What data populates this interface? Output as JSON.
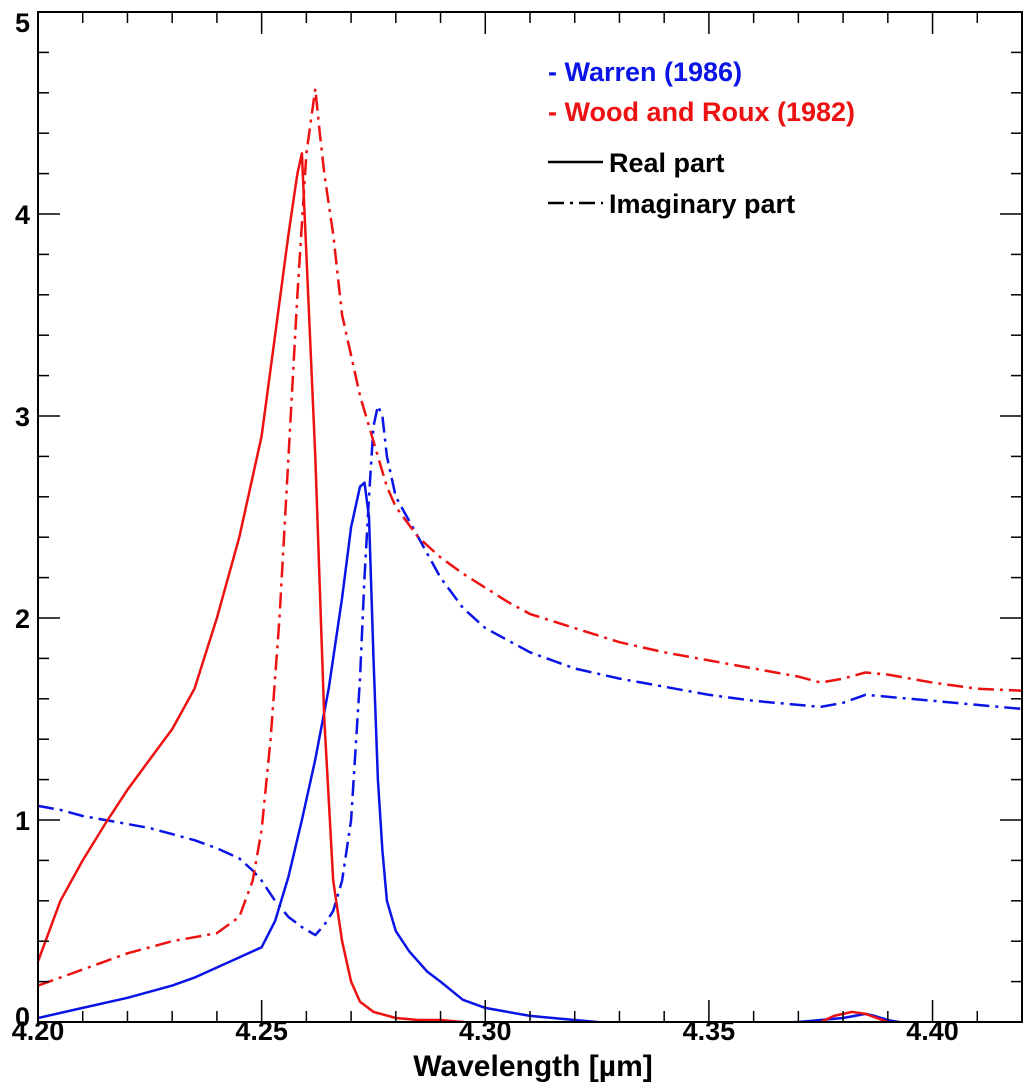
{
  "chart_data": {
    "type": "line",
    "title": "",
    "xlabel": "Wavelength [µm]",
    "ylabel": "",
    "xlim": [
      4.2,
      4.42
    ],
    "ylim": [
      0,
      5
    ],
    "x_ticks": [
      4.2,
      4.25,
      4.3,
      4.35,
      4.4
    ],
    "x_tick_labels": [
      "4.20",
      "4.25",
      "4.30",
      "4.35",
      "4.40"
    ],
    "y_ticks": [
      0,
      1,
      2,
      3,
      4,
      5
    ],
    "y_tick_labels": [
      "0",
      "1",
      "2",
      "3",
      "4",
      "5"
    ],
    "grid": false,
    "legend_position": "top-right",
    "legend": {
      "sources": [
        {
          "label": "- Warren (1986)",
          "color": "#0a14e6"
        },
        {
          "label": "- Wood and Roux (1982)",
          "color": "#ee1111"
        }
      ],
      "styles": [
        {
          "label": "Real part",
          "dash": "solid"
        },
        {
          "label": "Imaginary part",
          "dash": "dashdot"
        }
      ]
    },
    "series": [
      {
        "source": "Warren (1986)",
        "part": "Real part",
        "color": "#0a14e6",
        "dash": "solid",
        "x": [
          4.2,
          4.21,
          4.22,
          4.23,
          4.235,
          4.24,
          4.245,
          4.25,
          4.253,
          4.256,
          4.259,
          4.262,
          4.265,
          4.268,
          4.27,
          4.272,
          4.273,
          4.274,
          4.275,
          4.276,
          4.277,
          4.278,
          4.28,
          4.283,
          4.287,
          4.29,
          4.295,
          4.3,
          4.305,
          4.31,
          4.32,
          4.33,
          4.34,
          4.35,
          4.36,
          4.37,
          4.375,
          4.38,
          4.385,
          4.387,
          4.39,
          4.395,
          4.4,
          4.41,
          4.42
        ],
        "y": [
          0.02,
          0.07,
          0.12,
          0.18,
          0.22,
          0.27,
          0.32,
          0.37,
          0.5,
          0.72,
          1.0,
          1.3,
          1.65,
          2.1,
          2.45,
          2.65,
          2.67,
          2.5,
          1.8,
          1.2,
          0.85,
          0.6,
          0.45,
          0.35,
          0.25,
          0.2,
          0.11,
          0.07,
          0.05,
          0.03,
          0.01,
          -0.01,
          -0.01,
          -0.01,
          -0.01,
          0.0,
          0.01,
          0.02,
          0.04,
          0.03,
          0.01,
          -0.01,
          -0.02,
          -0.02,
          -0.02
        ]
      },
      {
        "source": "Warren (1986)",
        "part": "Imaginary part",
        "color": "#0a14e6",
        "dash": "dashdot",
        "x": [
          4.2,
          4.205,
          4.21,
          4.215,
          4.22,
          4.225,
          4.23,
          4.235,
          4.24,
          4.245,
          4.248,
          4.25,
          4.253,
          4.256,
          4.259,
          4.262,
          4.264,
          4.266,
          4.268,
          4.27,
          4.272,
          4.273,
          4.274,
          4.275,
          4.276,
          4.277,
          4.278,
          4.28,
          4.285,
          4.29,
          4.295,
          4.3,
          4.31,
          4.32,
          4.33,
          4.34,
          4.35,
          4.36,
          4.37,
          4.375,
          4.38,
          4.385,
          4.39,
          4.4,
          4.41,
          4.42
        ],
        "y": [
          1.07,
          1.05,
          1.02,
          1.0,
          0.98,
          0.96,
          0.93,
          0.9,
          0.86,
          0.81,
          0.75,
          0.7,
          0.6,
          0.52,
          0.47,
          0.43,
          0.48,
          0.55,
          0.7,
          1.0,
          1.7,
          2.2,
          2.6,
          2.95,
          3.05,
          3.0,
          2.8,
          2.6,
          2.4,
          2.2,
          2.05,
          1.95,
          1.83,
          1.75,
          1.7,
          1.66,
          1.62,
          1.59,
          1.57,
          1.56,
          1.58,
          1.62,
          1.61,
          1.59,
          1.57,
          1.55
        ]
      },
      {
        "source": "Wood and Roux (1982)",
        "part": "Real part",
        "color": "#ee1111",
        "dash": "solid",
        "x": [
          4.2,
          4.205,
          4.21,
          4.215,
          4.22,
          4.225,
          4.23,
          4.235,
          4.24,
          4.245,
          4.25,
          4.253,
          4.256,
          4.258,
          4.259,
          4.26,
          4.262,
          4.264,
          4.266,
          4.268,
          4.27,
          4.272,
          4.275,
          4.28,
          4.285,
          4.29,
          4.295,
          4.3,
          4.31,
          4.32,
          4.33,
          4.34,
          4.35,
          4.36,
          4.37,
          4.375,
          4.378,
          4.382,
          4.385,
          4.39,
          4.4,
          4.41,
          4.42
        ],
        "y": [
          0.3,
          0.6,
          0.8,
          0.98,
          1.15,
          1.3,
          1.45,
          1.65,
          2.0,
          2.4,
          2.9,
          3.4,
          3.9,
          4.2,
          4.3,
          3.8,
          2.8,
          1.5,
          0.7,
          0.4,
          0.2,
          0.1,
          0.05,
          0.02,
          0.01,
          0.01,
          0.0,
          -0.02,
          -0.02,
          -0.02,
          -0.02,
          -0.02,
          -0.02,
          -0.02,
          -0.01,
          0.0,
          0.03,
          0.05,
          0.04,
          0.0,
          -0.02,
          -0.02,
          -0.02
        ]
      },
      {
        "source": "Wood and Roux (1982)",
        "part": "Imaginary part",
        "color": "#ee1111",
        "dash": "dashdot",
        "x": [
          4.2,
          4.205,
          4.21,
          4.215,
          4.22,
          4.225,
          4.23,
          4.235,
          4.24,
          4.245,
          4.248,
          4.25,
          4.252,
          4.254,
          4.256,
          4.258,
          4.26,
          4.262,
          4.263,
          4.264,
          4.266,
          4.268,
          4.27,
          4.272,
          4.274,
          4.276,
          4.278,
          4.28,
          4.285,
          4.29,
          4.295,
          4.3,
          4.305,
          4.31,
          4.32,
          4.33,
          4.34,
          4.35,
          4.36,
          4.37,
          4.375,
          4.38,
          4.385,
          4.39,
          4.4,
          4.41,
          4.42
        ],
        "y": [
          0.18,
          0.22,
          0.26,
          0.3,
          0.34,
          0.37,
          0.4,
          0.42,
          0.44,
          0.52,
          0.7,
          0.95,
          1.4,
          2.0,
          2.8,
          3.6,
          4.3,
          4.62,
          4.4,
          4.2,
          3.9,
          3.5,
          3.3,
          3.1,
          2.95,
          2.8,
          2.65,
          2.55,
          2.4,
          2.3,
          2.22,
          2.15,
          2.08,
          2.02,
          1.95,
          1.88,
          1.83,
          1.79,
          1.75,
          1.71,
          1.68,
          1.7,
          1.73,
          1.72,
          1.68,
          1.65,
          1.64
        ]
      }
    ]
  }
}
